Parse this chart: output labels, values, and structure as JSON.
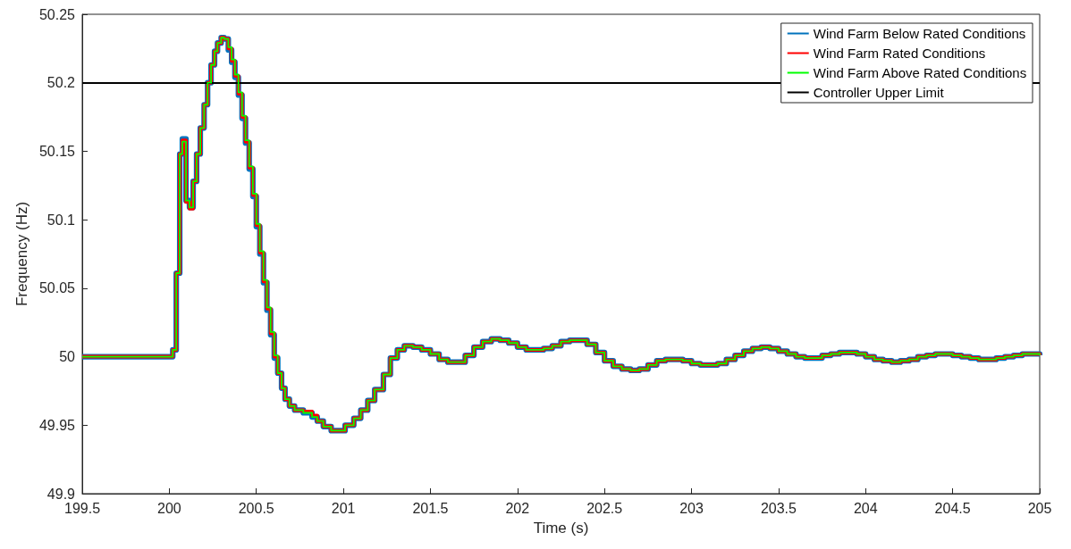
{
  "chart_data": {
    "type": "step",
    "xlabel": "Time (s)",
    "ylabel": "Frequency (Hz)",
    "xlim": [
      199.5,
      205
    ],
    "xticks": [
      199.5,
      200,
      200.5,
      201,
      201.5,
      202,
      202.5,
      203,
      203.5,
      204,
      204.5,
      205
    ],
    "ylim": [
      49.9,
      50.25
    ],
    "yticks": [
      49.9,
      49.95,
      50,
      50.05,
      50.1,
      50.15,
      50.2,
      50.25
    ],
    "grid": false,
    "legend": "top right",
    "marker": "none",
    "line_style": "solid",
    "x": [
      199.5,
      200.02,
      200.04,
      200.06,
      200.075,
      200.096,
      200.116,
      200.137,
      200.157,
      200.178,
      200.2,
      200.22,
      200.24,
      200.26,
      200.277,
      200.298,
      200.315,
      200.339,
      200.358,
      200.377,
      200.397,
      200.418,
      200.438,
      200.459,
      200.48,
      200.5,
      200.52,
      200.541,
      200.561,
      200.582,
      200.603,
      200.623,
      200.645,
      200.665,
      200.69,
      200.72,
      200.77,
      200.82,
      200.85,
      200.885,
      200.93,
      200.97,
      201.01,
      201.06,
      201.1,
      201.14,
      201.18,
      201.23,
      201.27,
      201.31,
      201.35,
      201.4,
      201.45,
      201.5,
      201.55,
      201.6,
      201.65,
      201.7,
      201.75,
      201.8,
      201.85,
      201.9,
      201.95,
      202,
      202.05,
      202.1,
      202.15,
      202.2,
      202.25,
      202.3,
      202.35,
      202.4,
      202.45,
      202.5,
      202.55,
      202.6,
      202.65,
      202.7,
      202.75,
      202.8,
      202.85,
      202.9,
      202.95,
      203,
      203.05,
      203.1,
      203.15,
      203.2,
      203.25,
      203.3,
      203.35,
      203.4,
      203.45,
      203.5,
      203.55,
      203.6,
      203.65,
      203.7,
      203.75,
      203.8,
      203.85,
      203.9,
      203.95,
      204,
      204.05,
      204.1,
      204.15,
      204.2,
      204.25,
      204.3,
      204.35,
      204.4,
      204.45,
      204.5,
      204.55,
      204.6,
      204.65,
      204.7,
      204.75,
      204.8,
      204.85,
      204.9,
      204.95,
      205
    ],
    "series": [
      {
        "name": "Wind Farm Below Rated Conditions",
        "color": "#0072bd",
        "values": [
          50,
          50.005,
          50.061,
          50.148,
          50.159,
          50.114,
          50.109,
          50.128,
          50.148,
          50.167,
          50.184,
          50.2,
          50.213,
          50.223,
          50.229,
          50.233,
          50.232,
          50.224,
          50.215,
          50.204,
          50.191,
          50.174,
          50.156,
          50.137,
          50.117,
          50.095,
          50.075,
          50.054,
          50.034,
          50.016,
          49.999,
          49.988,
          49.977,
          49.969,
          49.964,
          49.961,
          49.959,
          49.956,
          49.953,
          49.949,
          49.946,
          49.946,
          49.95,
          49.955,
          49.961,
          49.968,
          49.976,
          49.987,
          49.999,
          50.005,
          50.008,
          50.007,
          50.005,
          50.002,
          49.998,
          49.996,
          49.996,
          50.001,
          50.007,
          50.011,
          50.013,
          50.012,
          50.01,
          50.007,
          50.005,
          50.005,
          50.006,
          50.008,
          50.011,
          50.012,
          50.012,
          50.009,
          50.003,
          49.997,
          49.993,
          49.991,
          49.99,
          49.991,
          49.994,
          49.997,
          49.998,
          49.998,
          49.997,
          49.995,
          49.994,
          49.994,
          49.995,
          49.998,
          50.001,
          50.004,
          50.006,
          50.007,
          50.006,
          50.004,
          50.002,
          50,
          49.999,
          49.999,
          50.001,
          50.002,
          50.003,
          50.003,
          50.002,
          50,
          49.998,
          49.997,
          49.996,
          49.997,
          49.998,
          50,
          50.001,
          50.002,
          50.002,
          50.001,
          50,
          49.999,
          49.998,
          49.998,
          49.999,
          50,
          50.001,
          50.002,
          50.002,
          50.001
        ]
      },
      {
        "name": "Wind Farm Rated Conditions",
        "color": "#ff0000",
        "values": [
          50,
          50.005,
          50.061,
          50.148,
          50.158,
          50.113,
          50.108,
          50.128,
          50.148,
          50.167,
          50.184,
          50.2,
          50.213,
          50.223,
          50.229,
          50.233,
          50.232,
          50.225,
          50.216,
          50.205,
          50.192,
          50.175,
          50.157,
          50.138,
          50.118,
          50.096,
          50.076,
          50.055,
          50.035,
          50.017,
          50,
          49.988,
          49.977,
          49.969,
          49.964,
          49.961,
          49.96,
          49.957,
          49.953,
          49.949,
          49.946,
          49.946,
          49.95,
          49.955,
          49.961,
          49.968,
          49.976,
          49.987,
          49.999,
          50.005,
          50.008,
          50.007,
          50.005,
          50.002,
          49.998,
          49.996,
          49.996,
          50.001,
          50.007,
          50.011,
          50.013,
          50.012,
          50.01,
          50.007,
          50.005,
          50.005,
          50.006,
          50.008,
          50.011,
          50.012,
          50.012,
          50.009,
          50.003,
          49.997,
          49.993,
          49.991,
          49.99,
          49.991,
          49.994,
          49.997,
          49.998,
          49.998,
          49.997,
          49.995,
          49.994,
          49.994,
          49.995,
          49.998,
          50.001,
          50.004,
          50.006,
          50.007,
          50.006,
          50.004,
          50.002,
          50,
          49.999,
          49.999,
          50.001,
          50.002,
          50.003,
          50.003,
          50.002,
          50,
          49.998,
          49.997,
          49.996,
          49.997,
          49.998,
          50,
          50.001,
          50.002,
          50.002,
          50.001,
          50,
          49.999,
          49.998,
          49.998,
          49.999,
          50,
          50.001,
          50.002,
          50.002,
          50.001
        ]
      },
      {
        "name": "Wind Farm Above Rated Conditions",
        "color": "#00ff00",
        "values": [
          50,
          50.005,
          50.061,
          50.148,
          50.157,
          50.114,
          50.109,
          50.128,
          50.148,
          50.167,
          50.184,
          50.2,
          50.213,
          50.223,
          50.229,
          50.233,
          50.232,
          50.226,
          50.217,
          50.206,
          50.193,
          50.176,
          50.158,
          50.139,
          50.119,
          50.097,
          50.077,
          50.056,
          50.036,
          50.018,
          50.001,
          49.988,
          49.977,
          49.969,
          49.964,
          49.961,
          49.959,
          49.956,
          49.953,
          49.949,
          49.946,
          49.946,
          49.95,
          49.955,
          49.961,
          49.968,
          49.976,
          49.987,
          49.999,
          50.005,
          50.008,
          50.007,
          50.005,
          50.002,
          49.998,
          49.996,
          49.996,
          50.001,
          50.007,
          50.011,
          50.013,
          50.012,
          50.01,
          50.007,
          50.005,
          50.005,
          50.006,
          50.008,
          50.011,
          50.012,
          50.012,
          50.009,
          50.003,
          49.997,
          49.993,
          49.991,
          49.99,
          49.991,
          49.994,
          49.997,
          49.998,
          49.998,
          49.997,
          49.995,
          49.994,
          49.994,
          49.995,
          49.998,
          50.001,
          50.004,
          50.006,
          50.007,
          50.006,
          50.004,
          50.002,
          50,
          49.999,
          49.999,
          50.001,
          50.002,
          50.003,
          50.003,
          50.002,
          50,
          49.998,
          49.997,
          49.996,
          49.997,
          49.998,
          50,
          50.001,
          50.002,
          50.002,
          50.001,
          50,
          49.999,
          49.998,
          49.998,
          49.999,
          50,
          50.001,
          50.002,
          50.002,
          50.001
        ]
      }
    ],
    "ref_lines": [
      {
        "axis": "y",
        "value": 50.2,
        "label": "Controller Upper Limit",
        "color": "#000000",
        "line_style": "solid"
      }
    ]
  }
}
